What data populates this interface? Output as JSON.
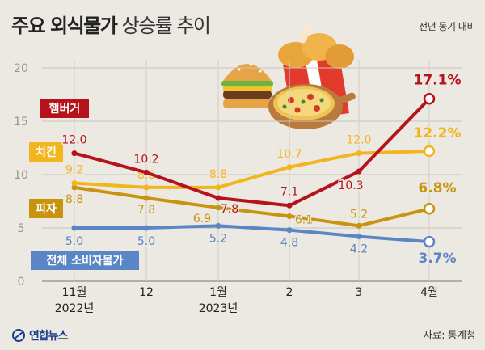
{
  "title_bold": "주요 외식물가",
  "title_light": "상승률 추이",
  "basis": "전년 동기 대비",
  "source": "자료: 통계청",
  "logo": "연합뉴스",
  "chart_data": {
    "type": "line",
    "title": "주요 외식물가 상승률 추이",
    "ylim": [
      0,
      20
    ],
    "yticks": [
      "0",
      "5",
      "10",
      "15",
      "20"
    ],
    "categories": [
      "11월",
      "12",
      "1월",
      "2",
      "3",
      "4월"
    ],
    "category_sublabels": [
      "2022년",
      "",
      "2023년",
      "",
      "",
      ""
    ],
    "series": [
      {
        "name": "햄버거",
        "color": "#b5121b",
        "values": [
          12.0,
          10.2,
          7.8,
          7.1,
          10.3,
          17.1
        ],
        "labels": [
          "12.0",
          "10.2",
          "7.8",
          "7.1",
          "10.3",
          "17.1%"
        ]
      },
      {
        "name": "치킨",
        "color": "#f3b51e",
        "values": [
          9.2,
          8.8,
          8.8,
          10.7,
          12.0,
          12.2
        ],
        "labels": [
          "9.2",
          "8.8",
          "8.8",
          "10.7",
          "12.0",
          "12.2%"
        ]
      },
      {
        "name": "피자",
        "color": "#c8930e",
        "values": [
          8.8,
          7.8,
          6.9,
          6.1,
          5.2,
          6.8
        ],
        "labels": [
          "8.8",
          "7.8",
          "6.9",
          "6.1",
          "5.2",
          "6.8%"
        ]
      },
      {
        "name": "전체 소비자물가",
        "color": "#5b86c5",
        "values": [
          5.0,
          5.0,
          5.2,
          4.8,
          4.2,
          3.7
        ],
        "labels": [
          "5.0",
          "5.0",
          "5.2",
          "4.8",
          "4.2",
          "3.7%"
        ]
      }
    ]
  }
}
